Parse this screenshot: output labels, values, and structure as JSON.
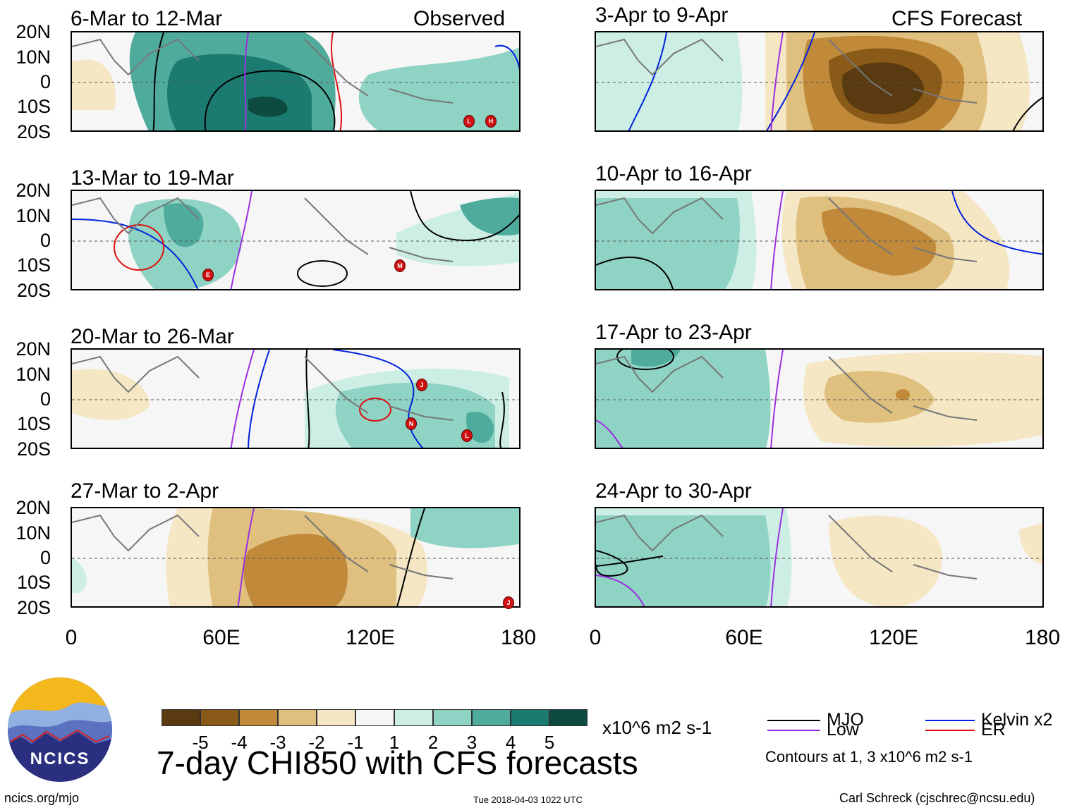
{
  "header": {
    "observed_label": "Observed",
    "forecast_label": "CFS Forecast"
  },
  "latitude_labels": [
    "20N",
    "10N",
    "0",
    "10S",
    "20S"
  ],
  "longitude_labels": [
    "0",
    "60E",
    "120E",
    "180"
  ],
  "panels": [
    {
      "title": "6-Mar to 12-Mar",
      "kind": "observed"
    },
    {
      "title": "13-Mar to 19-Mar",
      "kind": "observed"
    },
    {
      "title": "20-Mar to 26-Mar",
      "kind": "observed"
    },
    {
      "title": "27-Mar to 2-Apr",
      "kind": "observed"
    },
    {
      "title": "3-Apr to 9-Apr",
      "kind": "forecast"
    },
    {
      "title": "10-Apr to 16-Apr",
      "kind": "forecast"
    },
    {
      "title": "17-Apr to 23-Apr",
      "kind": "forecast"
    },
    {
      "title": "24-Apr to 30-Apr",
      "kind": "forecast"
    }
  ],
  "colorbar": {
    "colors": [
      "#5a3a10",
      "#8a5a18",
      "#c08a3a",
      "#dfc07e",
      "#f5e6c4",
      "#f6f6f6",
      "#cdeee5",
      "#8fd3c4",
      "#4fac9c",
      "#1c7b70",
      "#0d4a40"
    ],
    "ticks": [
      "-5",
      "-4",
      "-3",
      "-2",
      "-1",
      "1",
      "2",
      "3",
      "4",
      "5"
    ],
    "units": "x10^6 m2 s-1"
  },
  "legend": {
    "mjo": {
      "label": "MJO",
      "color": "#000000"
    },
    "kelvin": {
      "label": "Kelvin x2",
      "color": "#0022dd"
    },
    "low": {
      "label": "Low",
      "color": "#9b30e0"
    },
    "er": {
      "label": "ER",
      "color": "#dd1111"
    },
    "contours_note": "Contours at 1, 3 x10^6 m2 s-1"
  },
  "logo": {
    "text": "NCICS"
  },
  "main_title": "7-day CHI850 with CFS forecasts",
  "footer": {
    "url": "ncics.org/mjo",
    "timestamp": "Tue 2018-04-03 1022 UTC",
    "credit": "Carl Schreck (cjschrec@ncsu.edu)"
  },
  "storm_markers": [
    {
      "panel": 0,
      "letter": "L"
    },
    {
      "panel": 0,
      "letter": "H"
    },
    {
      "panel": 1,
      "letter": "E"
    },
    {
      "panel": 1,
      "letter": "M"
    },
    {
      "panel": 2,
      "letter": "J"
    },
    {
      "panel": 2,
      "letter": "N"
    },
    {
      "panel": 2,
      "letter": "L"
    },
    {
      "panel": 3,
      "letter": "J"
    }
  ]
}
